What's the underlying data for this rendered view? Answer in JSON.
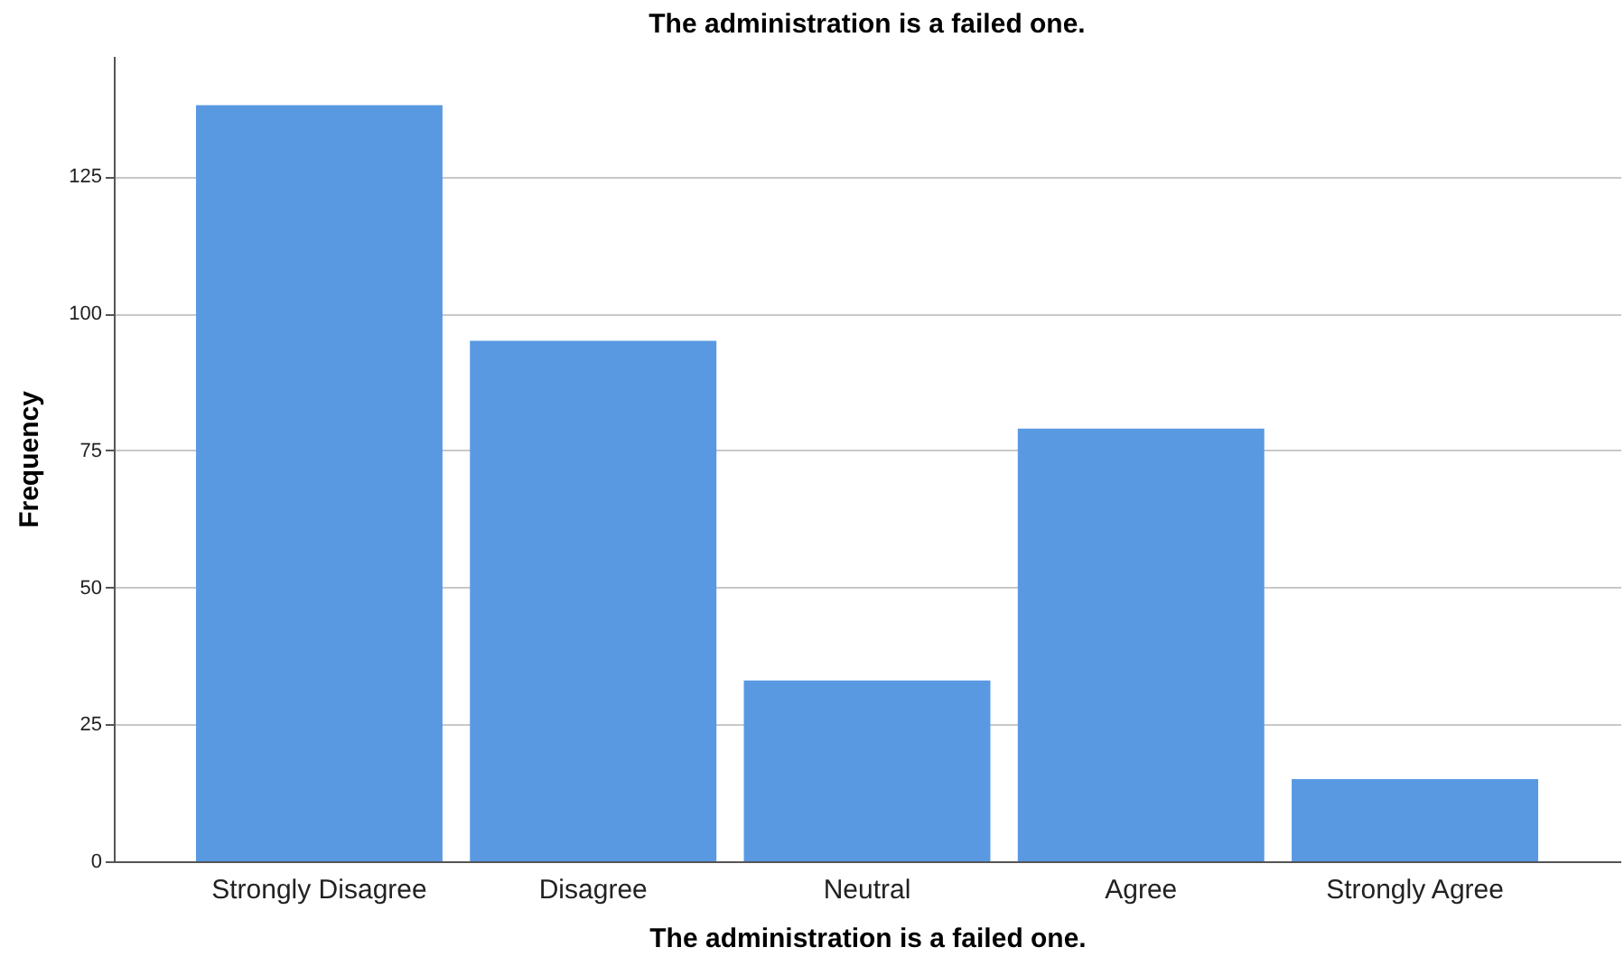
{
  "chart_data": {
    "type": "bar",
    "title": "The administration is a failed one.",
    "xlabel": "The administration is a failed one.",
    "ylabel": "Frequency",
    "categories": [
      "Strongly Disagree",
      "Disagree",
      "Neutral",
      "Agree",
      "Strongly Agree"
    ],
    "values": [
      138,
      95,
      33,
      79,
      15
    ],
    "color": "#5899e2",
    "ylim": [
      0,
      147
    ],
    "yticks": [
      0,
      25,
      50,
      75,
      100,
      125
    ],
    "grid": "y"
  }
}
